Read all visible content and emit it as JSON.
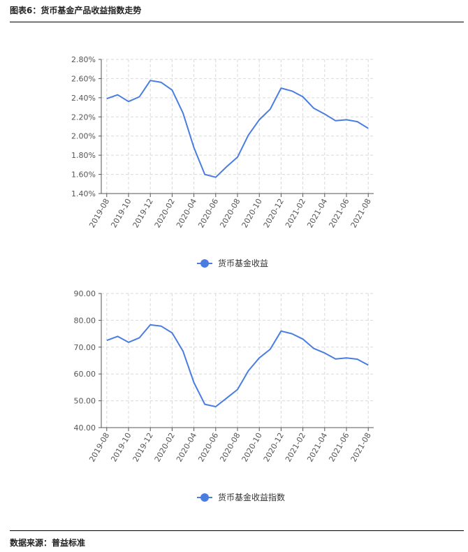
{
  "figure": {
    "title": "图表6：货币基金产品收益指数走势",
    "source": "数据来源：普益标准"
  },
  "colors": {
    "series": "#4a7de0",
    "grid": "#d9d9d9",
    "axis": "#555555"
  },
  "chart_data": [
    {
      "type": "line",
      "x": [
        "2019-08",
        "2019-09",
        "2019-10",
        "2019-11",
        "2019-12",
        "2020-01",
        "2020-02",
        "2020-03",
        "2020-04",
        "2020-05",
        "2020-06",
        "2020-07",
        "2020-08",
        "2020-09",
        "2020-10",
        "2020-11",
        "2020-12",
        "2021-01",
        "2021-02",
        "2021-03",
        "2021-04",
        "2021-05",
        "2021-06",
        "2021-07",
        "2021-08"
      ],
      "xtick_labels": [
        "2019-08",
        "2019-10",
        "2019-12",
        "2020-02",
        "2020-04",
        "2020-06",
        "2020-08",
        "2020-10",
        "2020-12",
        "2021-02",
        "2021-04",
        "2021-06",
        "2021-08"
      ],
      "series": [
        {
          "name": "货币基金收益",
          "values": [
            2.39,
            2.43,
            2.36,
            2.41,
            2.58,
            2.56,
            2.48,
            2.24,
            1.88,
            1.6,
            1.57,
            1.68,
            1.78,
            2.01,
            2.17,
            2.28,
            2.5,
            2.47,
            2.41,
            2.29,
            2.23,
            2.16,
            2.17,
            2.15,
            2.08
          ]
        }
      ],
      "ylim": [
        1.4,
        2.8
      ],
      "yticks": [
        1.4,
        1.6,
        1.8,
        2.0,
        2.2,
        2.4,
        2.6,
        2.8
      ],
      "yformat": "percent2",
      "grid": true,
      "legend": "bottom-center"
    },
    {
      "type": "line",
      "x": [
        "2019-08",
        "2019-09",
        "2019-10",
        "2019-11",
        "2019-12",
        "2020-01",
        "2020-02",
        "2020-03",
        "2020-04",
        "2020-05",
        "2020-06",
        "2020-07",
        "2020-08",
        "2020-09",
        "2020-10",
        "2020-11",
        "2020-12",
        "2021-01",
        "2021-02",
        "2021-03",
        "2021-04",
        "2021-05",
        "2021-06",
        "2021-07",
        "2021-08"
      ],
      "xtick_labels": [
        "2019-08",
        "2019-10",
        "2019-12",
        "2020-02",
        "2020-04",
        "2020-06",
        "2020-08",
        "2020-10",
        "2020-12",
        "2021-02",
        "2021-04",
        "2021-06",
        "2021-08"
      ],
      "series": [
        {
          "name": "货币基金收益指数",
          "values": [
            72.5,
            74.0,
            71.8,
            73.5,
            78.3,
            77.8,
            75.3,
            68.5,
            56.8,
            48.7,
            47.8,
            51.0,
            54.2,
            61.2,
            66.0,
            69.2,
            76.0,
            75.0,
            73.0,
            69.5,
            67.8,
            65.6,
            66.0,
            65.5,
            63.3
          ]
        }
      ],
      "ylim": [
        40,
        90
      ],
      "yticks": [
        40,
        50,
        60,
        70,
        80,
        90
      ],
      "yformat": "fixed2",
      "grid": true,
      "legend": "bottom-center"
    }
  ]
}
